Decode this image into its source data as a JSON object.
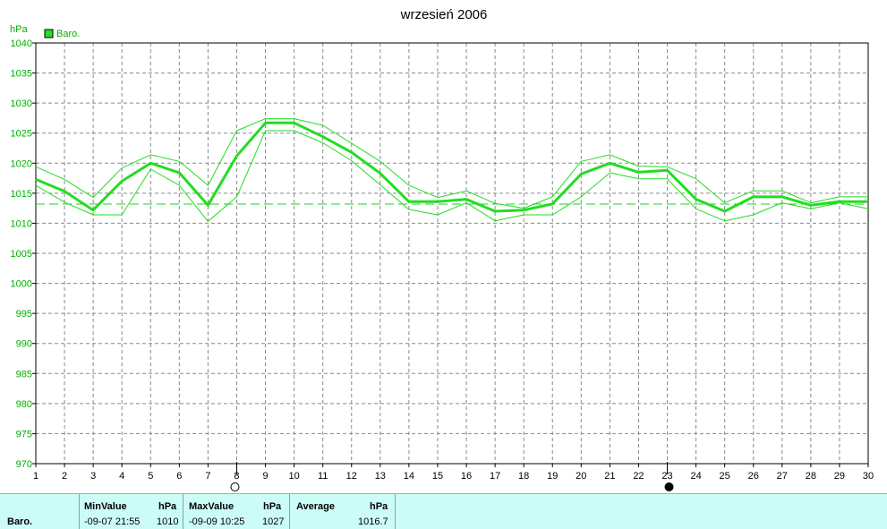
{
  "chart_data": {
    "type": "line",
    "title": "wrzesień 2006",
    "ylabel": "hPa",
    "ylim": [
      970,
      1040
    ],
    "yticks": [
      970,
      975,
      980,
      985,
      990,
      995,
      1000,
      1005,
      1010,
      1015,
      1020,
      1025,
      1030,
      1035,
      1040
    ],
    "x": [
      1,
      2,
      3,
      4,
      5,
      6,
      7,
      8,
      9,
      10,
      11,
      12,
      13,
      14,
      15,
      16,
      17,
      18,
      19,
      20,
      21,
      22,
      23,
      24,
      25,
      26,
      27,
      28,
      29,
      30
    ],
    "xlim": [
      1,
      30
    ],
    "grid": true,
    "legend": {
      "position": "top-left",
      "entries": [
        {
          "name": "Baro.",
          "color": "#22dd22"
        }
      ]
    },
    "series": [
      {
        "name": "Baro.",
        "role": "mean",
        "values": [
          1017.3,
          1015.3,
          1012.2,
          1017.0,
          1020.0,
          1018.4,
          1013.0,
          1021.2,
          1026.7,
          1026.7,
          1024.4,
          1021.8,
          1018.3,
          1013.6,
          1013.6,
          1014.0,
          1012.0,
          1012.2,
          1013.2,
          1018.2,
          1020.0,
          1018.5,
          1018.8,
          1014.0,
          1012.0,
          1014.4,
          1014.4,
          1013.0,
          1013.6,
          1013.6
        ]
      },
      {
        "role": "max",
        "values": [
          1019.4,
          1017.3,
          1014.3,
          1019.2,
          1021.4,
          1020.3,
          1016.3,
          1025.4,
          1027.4,
          1027.4,
          1026.3,
          1023.3,
          1020.3,
          1016.3,
          1014.3,
          1015.4,
          1013.3,
          1012.5,
          1014.4,
          1020.3,
          1021.4,
          1019.5,
          1019.4,
          1017.4,
          1013.4,
          1015.4,
          1015.4,
          1013.4,
          1014.4,
          1014.4
        ]
      },
      {
        "role": "min",
        "values": [
          1016.3,
          1013.5,
          1011.4,
          1011.4,
          1019.0,
          1016.3,
          1010.3,
          1014.4,
          1025.4,
          1025.4,
          1023.4,
          1020.4,
          1016.4,
          1012.3,
          1011.4,
          1013.4,
          1010.4,
          1011.4,
          1011.4,
          1014.4,
          1018.4,
          1017.4,
          1017.4,
          1012.4,
          1010.4,
          1011.4,
          1013.4,
          1012.4,
          1013.4,
          1012.4
        ]
      }
    ],
    "reference_line": {
      "value": 1013.2,
      "style": "dashed"
    },
    "markers": [
      {
        "x": 8,
        "symbol": "open-circle"
      },
      {
        "x": 23,
        "symbol": "filled-circle"
      }
    ],
    "colors": {
      "series": "#22dd22",
      "grid": "#808080",
      "axis": "#000000",
      "panel_bg": "#ccfcf8"
    }
  },
  "stats": {
    "row_label": "Baro.",
    "min": {
      "header": "MinValue",
      "unit": "hPa",
      "time": "-09-07  21:55",
      "value": "1010"
    },
    "max": {
      "header": "MaxValue",
      "unit": "hPa",
      "time": "-09-09  10:25",
      "value": "1027"
    },
    "avg": {
      "header": "Average",
      "unit": "hPa",
      "value": "1016.7"
    }
  }
}
